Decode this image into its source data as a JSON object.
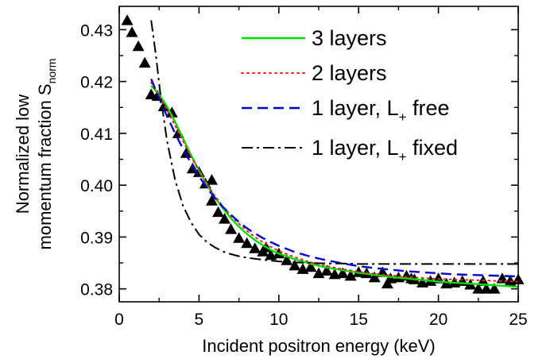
{
  "chart_data": {
    "type": "scatter",
    "xlabel": "Incident positron energy (keV)",
    "ylabel_line1": "Normalized low",
    "ylabel_line2": "momentum fraction S",
    "ylabel_sub": "norm",
    "xlim": [
      0,
      25
    ],
    "ylim": [
      0.3775,
      0.4345
    ],
    "x_ticks": [
      0,
      5,
      10,
      15,
      20,
      25
    ],
    "y_ticks": [
      0.38,
      0.39,
      0.4,
      0.41,
      0.42,
      0.43
    ],
    "grid": false,
    "legend_position": "top-right",
    "measured": {
      "marker": "triangle",
      "color": "#000000",
      "points": [
        [
          0.5,
          0.4318
        ],
        [
          0.8,
          0.4295
        ],
        [
          1.2,
          0.4268
        ],
        [
          1.6,
          0.4236
        ],
        [
          2.0,
          0.4175
        ],
        [
          2.4,
          0.4172
        ],
        [
          2.8,
          0.4152
        ],
        [
          3.3,
          0.414
        ],
        [
          3.7,
          0.41
        ],
        [
          4.2,
          0.4062
        ],
        [
          4.6,
          0.4032
        ],
        [
          5.0,
          0.4025
        ],
        [
          5.4,
          0.4003
        ],
        [
          5.8,
          0.397
        ],
        [
          6.2,
          0.3948
        ],
        [
          6.6,
          0.3935
        ],
        [
          7.0,
          0.3915
        ],
        [
          7.5,
          0.3898
        ],
        [
          8.0,
          0.3888
        ],
        [
          8.5,
          0.3878
        ],
        [
          9.0,
          0.3872
        ],
        [
          9.5,
          0.3865
        ],
        [
          10.0,
          0.3868
        ],
        [
          10.5,
          0.3855
        ],
        [
          11.0,
          0.3845
        ],
        [
          11.5,
          0.3838
        ],
        [
          12.0,
          0.3842
        ],
        [
          12.5,
          0.383
        ],
        [
          13.0,
          0.3835
        ],
        [
          13.5,
          0.3828
        ],
        [
          14.0,
          0.383
        ],
        [
          14.5,
          0.3825
        ],
        [
          15.0,
          0.3832
        ],
        [
          15.5,
          0.383
        ],
        [
          16.0,
          0.3822
        ],
        [
          16.5,
          0.3832
        ],
        [
          17.0,
          0.382
        ],
        [
          17.5,
          0.3822
        ],
        [
          18.0,
          0.3825
        ],
        [
          18.5,
          0.3818
        ],
        [
          19.0,
          0.3812
        ],
        [
          19.5,
          0.3815
        ],
        [
          20.0,
          0.382
        ],
        [
          20.5,
          0.381
        ],
        [
          21.0,
          0.3812
        ],
        [
          21.5,
          0.3815
        ],
        [
          22.0,
          0.3808
        ],
        [
          22.5,
          0.38
        ],
        [
          23.0,
          0.38
        ],
        [
          23.5,
          0.38
        ],
        [
          24.0,
          0.382
        ],
        [
          24.5,
          0.3815
        ],
        [
          25.0,
          0.3818
        ],
        [
          5.8,
          0.401
        ],
        [
          9.2,
          0.388
        ],
        [
          16.8,
          0.381
        ],
        [
          18.3,
          0.382
        ],
        [
          22.8,
          0.3815
        ]
      ]
    },
    "series": [
      {
        "name": "3 layers",
        "style": "solid",
        "color": "#00dd00",
        "x": [
          2,
          2.5,
          3,
          3.5,
          4,
          4.5,
          5,
          5.5,
          6,
          6.5,
          7,
          7.5,
          8,
          8.5,
          9,
          9.5,
          10,
          11,
          12,
          13,
          14,
          15,
          16,
          17,
          18,
          19,
          20,
          21,
          22,
          23,
          24,
          25
        ],
        "y": [
          0.4192,
          0.4175,
          0.4152,
          0.4122,
          0.409,
          0.4058,
          0.4028,
          0.4001,
          0.3976,
          0.3955,
          0.3936,
          0.392,
          0.3906,
          0.3894,
          0.3884,
          0.3875,
          0.3868,
          0.3857,
          0.3848,
          0.3841,
          0.3836,
          0.3831,
          0.3827,
          0.3823,
          0.382,
          0.3817,
          0.3814,
          0.3812,
          0.381,
          0.3808,
          0.3806,
          0.3804
        ]
      },
      {
        "name": "2 layers",
        "style": "dotted",
        "color": "#ee2222",
        "x": [
          2,
          2.5,
          3,
          3.5,
          4,
          4.5,
          5,
          5.5,
          6,
          6.5,
          7,
          7.5,
          8,
          8.5,
          9,
          9.5,
          10,
          11,
          12,
          13,
          14,
          15,
          16,
          17,
          18,
          19,
          20,
          21,
          22,
          23,
          24,
          25
        ],
        "y": [
          0.4198,
          0.4172,
          0.4145,
          0.4115,
          0.4085,
          0.4055,
          0.4027,
          0.4002,
          0.3979,
          0.3959,
          0.3941,
          0.3926,
          0.3912,
          0.39,
          0.389,
          0.3881,
          0.3873,
          0.3861,
          0.3851,
          0.3844,
          0.3838,
          0.3833,
          0.3829,
          0.3826,
          0.3823,
          0.3821,
          0.3819,
          0.3818,
          0.3817,
          0.3816,
          0.3815,
          0.3814
        ]
      },
      {
        "name_main": "1 layer, L",
        "name_sub": "+",
        "name_rest": " free",
        "style": "dashed",
        "color": "#0000dd",
        "x": [
          2,
          2.5,
          3,
          3.5,
          4,
          4.5,
          5,
          5.5,
          6,
          6.5,
          7,
          7.5,
          8,
          8.5,
          9,
          9.5,
          10,
          11,
          12,
          13,
          14,
          15,
          16,
          17,
          18,
          19,
          20,
          21,
          22,
          23,
          24,
          25
        ],
        "y": [
          0.4205,
          0.4168,
          0.4133,
          0.41,
          0.407,
          0.4042,
          0.4017,
          0.3995,
          0.3975,
          0.3958,
          0.3943,
          0.3929,
          0.3917,
          0.3907,
          0.3898,
          0.389,
          0.3883,
          0.3871,
          0.3862,
          0.3855,
          0.3849,
          0.3844,
          0.384,
          0.3837,
          0.3834,
          0.3832,
          0.383,
          0.3828,
          0.3827,
          0.3826,
          0.3825,
          0.3824
        ]
      },
      {
        "name_main": "1 layer, L",
        "name_sub": "+",
        "name_rest": " fixed",
        "style": "dashdot",
        "color": "#000000",
        "x": [
          2,
          2.3,
          2.6,
          3,
          3.5,
          4,
          4.5,
          5,
          5.5,
          6,
          6.5,
          7,
          7.5,
          8,
          9,
          10,
          11,
          12,
          13,
          14,
          15,
          17,
          19,
          21,
          23,
          25
        ],
        "y": [
          0.4318,
          0.425,
          0.417,
          0.4085,
          0.401,
          0.396,
          0.3928,
          0.3905,
          0.389,
          0.388,
          0.3872,
          0.3867,
          0.3863,
          0.386,
          0.3856,
          0.3853,
          0.3851,
          0.385,
          0.3849,
          0.3849,
          0.3848,
          0.3848,
          0.3848,
          0.3848,
          0.3848,
          0.3848
        ]
      }
    ]
  }
}
